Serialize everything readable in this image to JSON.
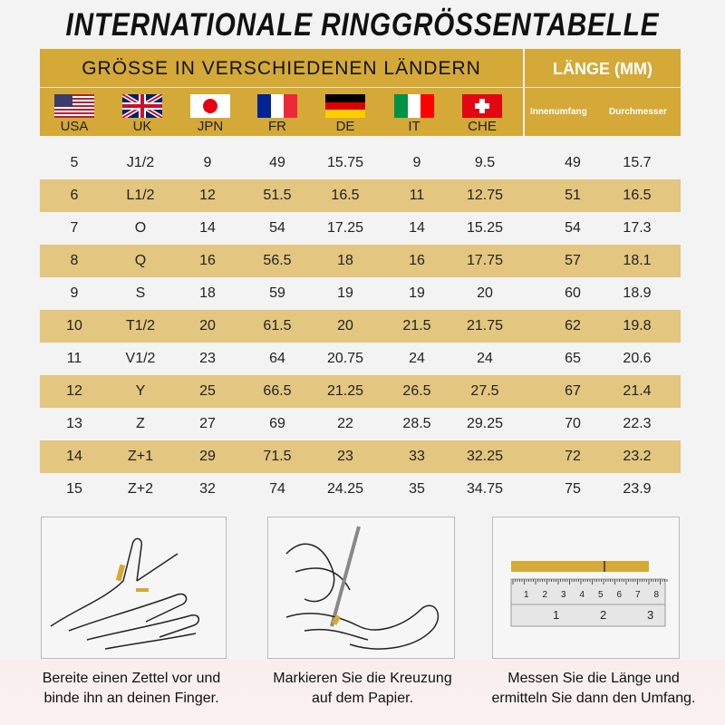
{
  "title": "INTERNATIONALE RINGGRÖSSENTABELLE",
  "header": {
    "left": "GRÖSSE IN VERSCHIEDENEN LÄNDERN",
    "right": "LÄNGE (MM)",
    "countries": [
      "USA",
      "UK",
      "JPN",
      "FR",
      "DE",
      "IT",
      "CHE"
    ],
    "length_cols": [
      "Innenumfang",
      "Durchmesser"
    ]
  },
  "colors": {
    "gold": "#d4a937",
    "stripe": "#e3c67f"
  },
  "rows": [
    [
      "5",
      "J1/2",
      "9",
      "49",
      "15.75",
      "9",
      "9.5",
      "49",
      "15.7"
    ],
    [
      "6",
      "L1/2",
      "12",
      "51.5",
      "16.5",
      "11",
      "12.75",
      "51",
      "16.5"
    ],
    [
      "7",
      "O",
      "14",
      "54",
      "17.25",
      "14",
      "15.25",
      "54",
      "17.3"
    ],
    [
      "8",
      "Q",
      "16",
      "56.5",
      "18",
      "16",
      "17.75",
      "57",
      "18.1"
    ],
    [
      "9",
      "S",
      "18",
      "59",
      "19",
      "19",
      "20",
      "60",
      "18.9"
    ],
    [
      "10",
      "T1/2",
      "20",
      "61.5",
      "20",
      "21.5",
      "21.75",
      "62",
      "19.8"
    ],
    [
      "11",
      "V1/2",
      "23",
      "64",
      "20.75",
      "24",
      "24",
      "65",
      "20.6"
    ],
    [
      "12",
      "Y",
      "25",
      "66.5",
      "21.25",
      "26.5",
      "27.5",
      "67",
      "21.4"
    ],
    [
      "13",
      "Z",
      "27",
      "69",
      "22",
      "28.5",
      "29.25",
      "70",
      "22.3"
    ],
    [
      "14",
      "Z+1",
      "29",
      "71.5",
      "23",
      "33",
      "32.25",
      "72",
      "23.2"
    ],
    [
      "15",
      "Z+2",
      "32",
      "74",
      "24.25",
      "35",
      "34.75",
      "75",
      "23.9"
    ]
  ],
  "steps": [
    {
      "line1": "Bereite einen Zettel vor und",
      "line2": "binde ihn an deinen Finger."
    },
    {
      "line1": "Markieren Sie die Kreuzung",
      "line2": "auf dem Papier."
    },
    {
      "line1": "Messen Sie die Länge und",
      "line2": "ermitteln Sie dann den Umfang."
    }
  ],
  "ruler": {
    "top_ticks": [
      "1",
      "2",
      "3",
      "4",
      "5",
      "6",
      "7",
      "8"
    ],
    "bottom_ticks": [
      "1",
      "2",
      "3"
    ]
  }
}
